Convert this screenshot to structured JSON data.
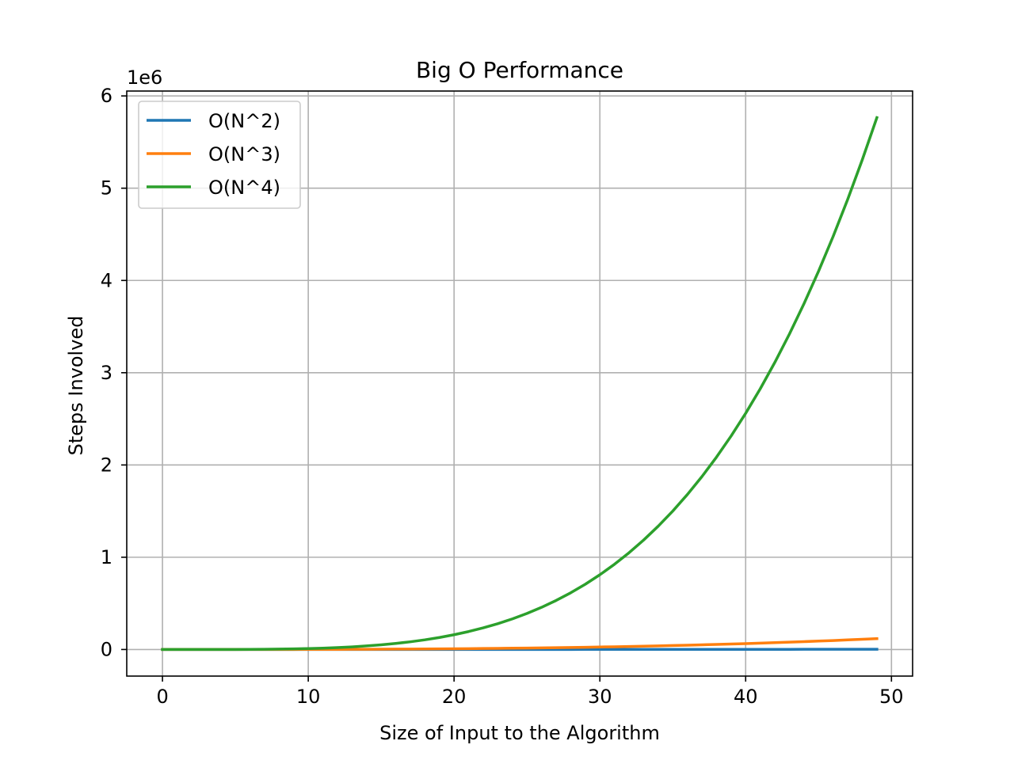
{
  "chart_data": {
    "type": "line",
    "title": "Big O Performance",
    "xlabel": "Size of Input to the Algorithm",
    "ylabel": "Steps Involved",
    "y_offset_label": "1e6",
    "y_scale": 1000000,
    "xlim": [
      -2.45,
      51.45
    ],
    "ylim": [
      -288240,
      6053041
    ],
    "x_ticks": [
      0,
      10,
      20,
      30,
      40,
      50
    ],
    "y_ticks": [
      0,
      1,
      2,
      3,
      4,
      5,
      6
    ],
    "grid": true,
    "legend_position": "upper-left",
    "x_range": {
      "start": 0,
      "end": 49,
      "step": 1
    },
    "series": [
      {
        "name": "O(N^2)",
        "exponent": 2,
        "color": "#1f77b4"
      },
      {
        "name": "O(N^3)",
        "exponent": 3,
        "color": "#ff7f0e"
      },
      {
        "name": "O(N^4)",
        "exponent": 4,
        "color": "#2ca02c"
      }
    ]
  }
}
